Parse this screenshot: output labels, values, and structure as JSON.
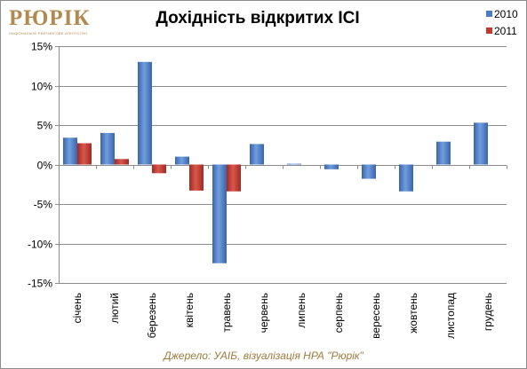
{
  "logo": {
    "text": "РЮРІК",
    "tagline": "НАЦІОНАЛЬНЕ РЕЙТИНГОВЕ АГЕНТСТВО"
  },
  "source_note": "Джерело: УАІБ, візуалізація НРА \"Рюрік\"",
  "colors": {
    "series_2010": "#4a7cc7",
    "series_2011": "#c0392b"
  },
  "chart_data": {
    "type": "bar",
    "title": "Дохідність відкритих ІСІ",
    "xlabel": "",
    "ylabel": "",
    "categories": [
      "січень",
      "лютий",
      "березень",
      "квітень",
      "травень",
      "червень",
      "липень",
      "серпень",
      "вересень",
      "жовтень",
      "листопад",
      "грудень"
    ],
    "series": [
      {
        "name": "2010",
        "values": [
          3.4,
          4.0,
          13.0,
          1.0,
          -12.5,
          2.6,
          0.1,
          -0.6,
          -1.8,
          -3.4,
          2.9,
          5.3
        ]
      },
      {
        "name": "2011",
        "values": [
          2.7,
          0.7,
          -1.1,
          -3.3,
          -3.4,
          null,
          null,
          null,
          null,
          null,
          null,
          null
        ]
      }
    ],
    "ylim": [
      -15,
      15
    ],
    "yticks": [
      {
        "value": 15,
        "label": "15%"
      },
      {
        "value": 10,
        "label": "10%"
      },
      {
        "value": 5,
        "label": "5%"
      },
      {
        "value": 0,
        "label": "0%"
      },
      {
        "value": -5,
        "label": "-5%"
      },
      {
        "value": -10,
        "label": "-10%"
      },
      {
        "value": -15,
        "label": "-15%"
      }
    ],
    "grid": true,
    "legend_position": "top-right"
  }
}
